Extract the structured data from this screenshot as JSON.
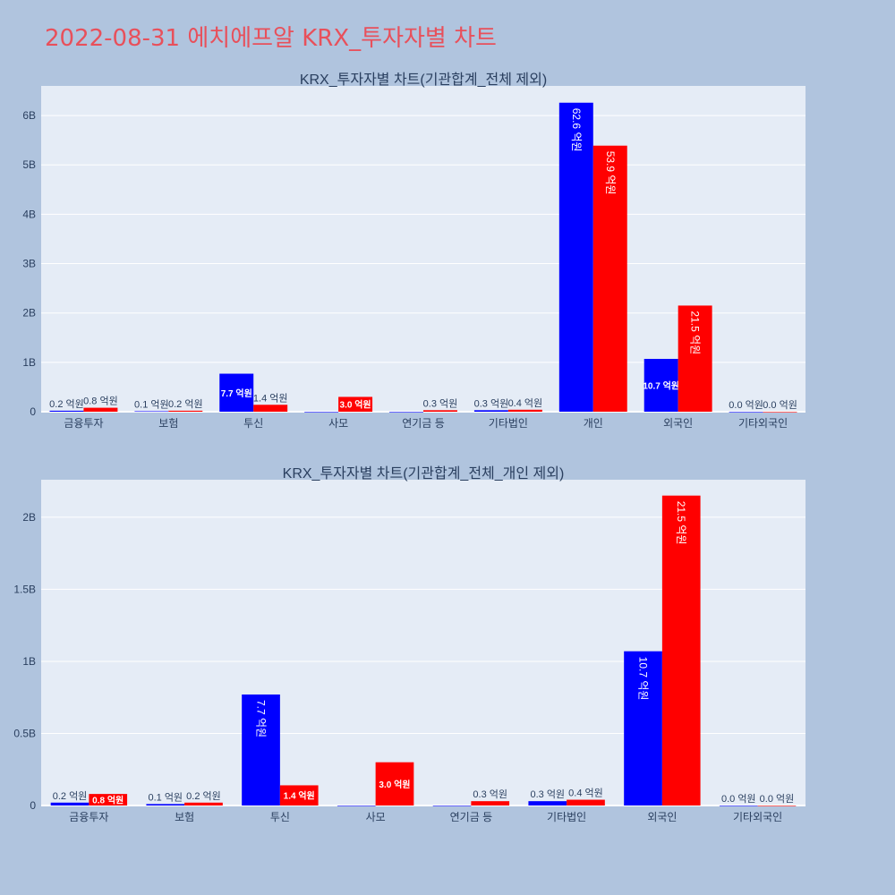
{
  "page": {
    "title": "2022-08-31 에치에프알 KRX_투자자별 차트",
    "title_color": "#e8505b",
    "background": "#b0c4de",
    "plot_background": "#e5ecf6"
  },
  "chart_data": [
    {
      "type": "bar",
      "title": "KRX_투자자별 차트(기관합계_전체 제외)",
      "categories": [
        "금융투자",
        "보험",
        "투신",
        "사모",
        "연기금 등",
        "기타법인",
        "개인",
        "외국인",
        "기타외국인"
      ],
      "ylim": [
        0,
        6.6
      ],
      "yunit": "B",
      "yticks": [
        "0",
        "1B",
        "2B",
        "3B",
        "4B",
        "5B",
        "6B"
      ],
      "grid": true,
      "series": [
        {
          "color": "#0000ff",
          "values": [
            0.02,
            0.01,
            0.77,
            0,
            0,
            0.03,
            6.26,
            1.07,
            0.0
          ],
          "labels": [
            "0.2 억원",
            "0.1 억원",
            "7.7 억원",
            "",
            "",
            "0.3 억원",
            "62.6 억원",
            "10.7 억원",
            "0.0 억원"
          ]
        },
        {
          "color": "#ff0000",
          "values": [
            0.08,
            0.02,
            0.14,
            0.3,
            0.03,
            0.04,
            5.39,
            2.15,
            0.0
          ],
          "labels": [
            "0.8 억원",
            "0.2 억원",
            "1.4 억원",
            "3.0 억원",
            "0.3 억원",
            "0.4 억원",
            "53.9 억원",
            "21.5 억원",
            "0.0 억원"
          ]
        }
      ]
    },
    {
      "type": "bar",
      "title": "KRX_투자자별 차트(기관합계_전체_개인 제외)",
      "categories": [
        "금융투자",
        "보험",
        "투신",
        "사모",
        "연기금 등",
        "기타법인",
        "외국인",
        "기타외국인"
      ],
      "ylim": [
        0,
        2.26
      ],
      "yunit": "B",
      "yticks": [
        "0",
        "0.5B",
        "1B",
        "1.5B",
        "2B"
      ],
      "grid": true,
      "series": [
        {
          "color": "#0000ff",
          "values": [
            0.02,
            0.01,
            0.77,
            0,
            0,
            0.03,
            1.07,
            0.0
          ],
          "labels": [
            "0.2 억원",
            "0.1 억원",
            "7.7 억원",
            "",
            "",
            "0.3 억원",
            "10.7 억원",
            "0.0 억원"
          ]
        },
        {
          "color": "#ff0000",
          "values": [
            0.08,
            0.02,
            0.14,
            0.3,
            0.03,
            0.04,
            2.15,
            0.0
          ],
          "labels": [
            "0.8 억원",
            "0.2 억원",
            "1.4 억원",
            "3.0 억원",
            "0.3 억원",
            "0.4 억원",
            "21.5 억원",
            "0.0 억원"
          ]
        }
      ]
    }
  ]
}
